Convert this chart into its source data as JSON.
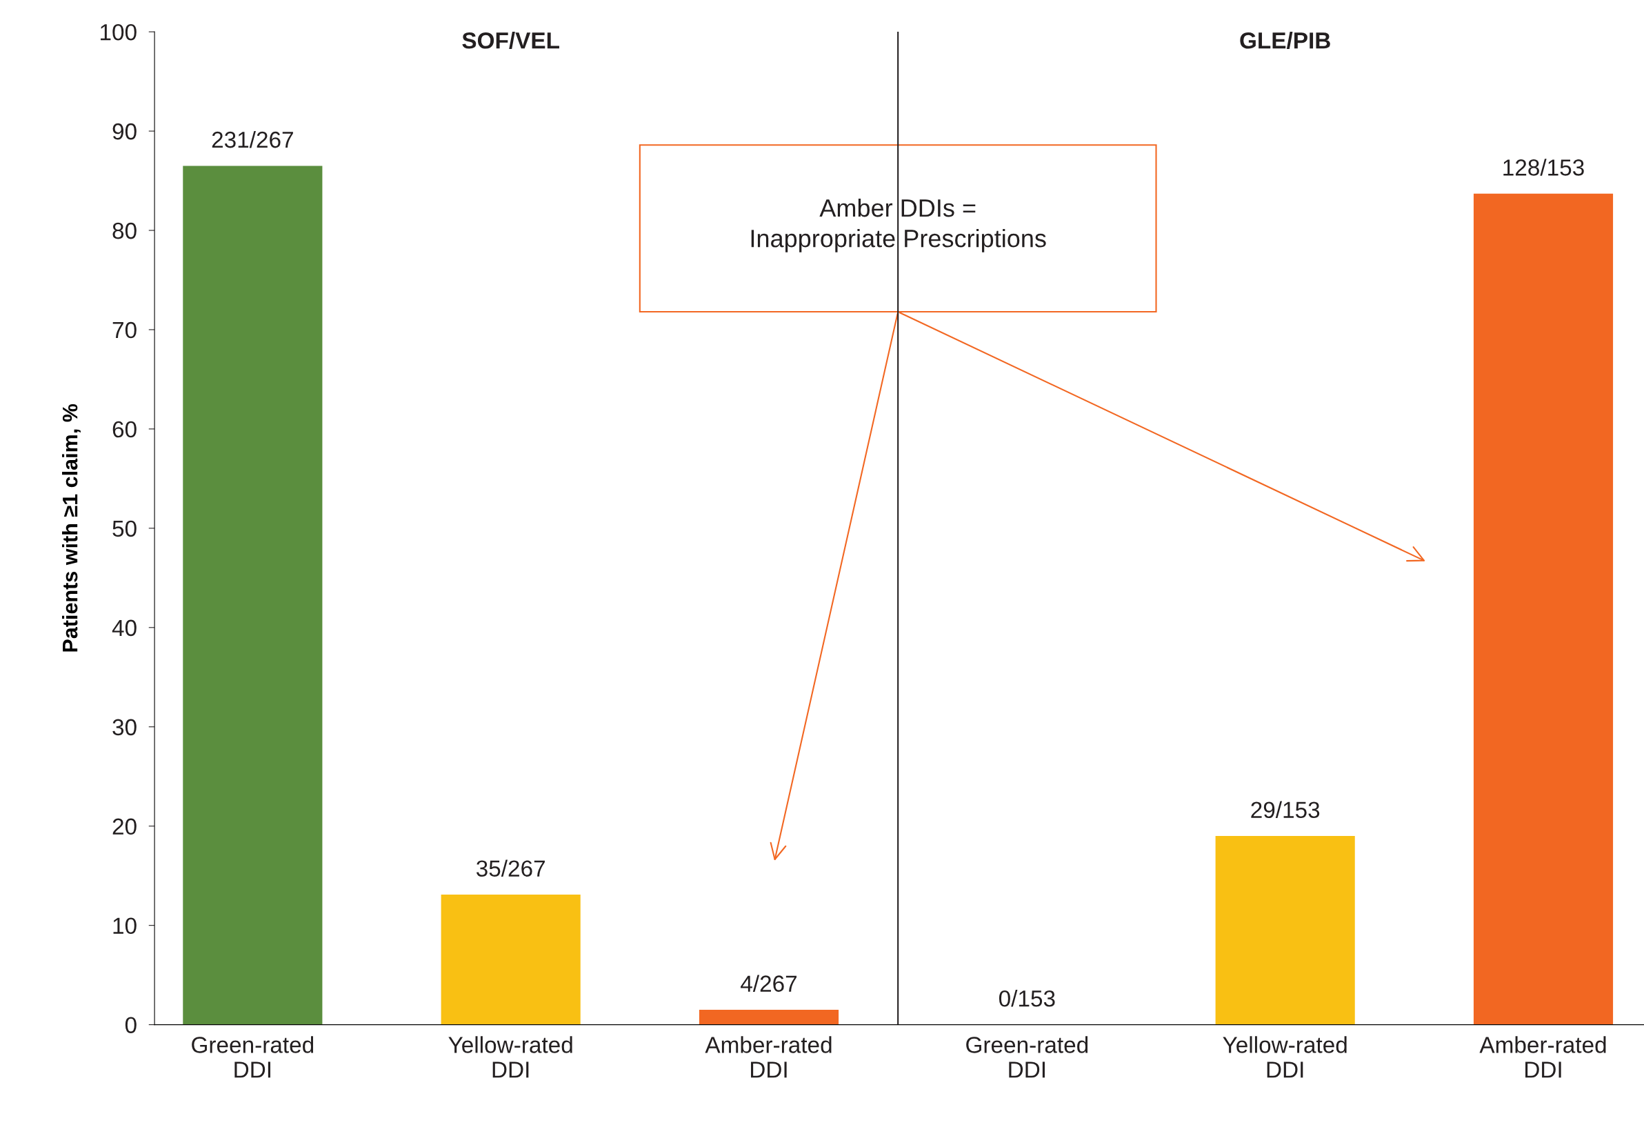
{
  "chart_data": {
    "type": "bar",
    "ylabel": "Patients with ≥1 claim, %",
    "categories": [
      "Green-rated\nDDI",
      "Yellow-rated\nDDI",
      "Amber-rated\nDDI",
      "Green-rated\nDDI",
      "Yellow-rated\nDDI",
      "Amber-rated\nDDI"
    ],
    "values": [
      86.5,
      13.1,
      1.5,
      0,
      19.0,
      83.7
    ],
    "colors": [
      "#5b8e3e",
      "#f9c013",
      "#f26722",
      "#5b8e3e",
      "#f9c013",
      "#f26722"
    ],
    "value_labels": [
      "231/267",
      "35/267",
      "4/267",
      "0/153",
      "29/153",
      "128/153"
    ],
    "ylim": [
      0,
      100
    ],
    "yticks": [
      0,
      10,
      20,
      30,
      40,
      50,
      60,
      70,
      80,
      90,
      100
    ],
    "grid": false,
    "legend": false,
    "annotations": [
      "SOF/VEL",
      "GLE/PIB",
      "Amber DDIs =\nInappropriate Prescriptions"
    ]
  }
}
